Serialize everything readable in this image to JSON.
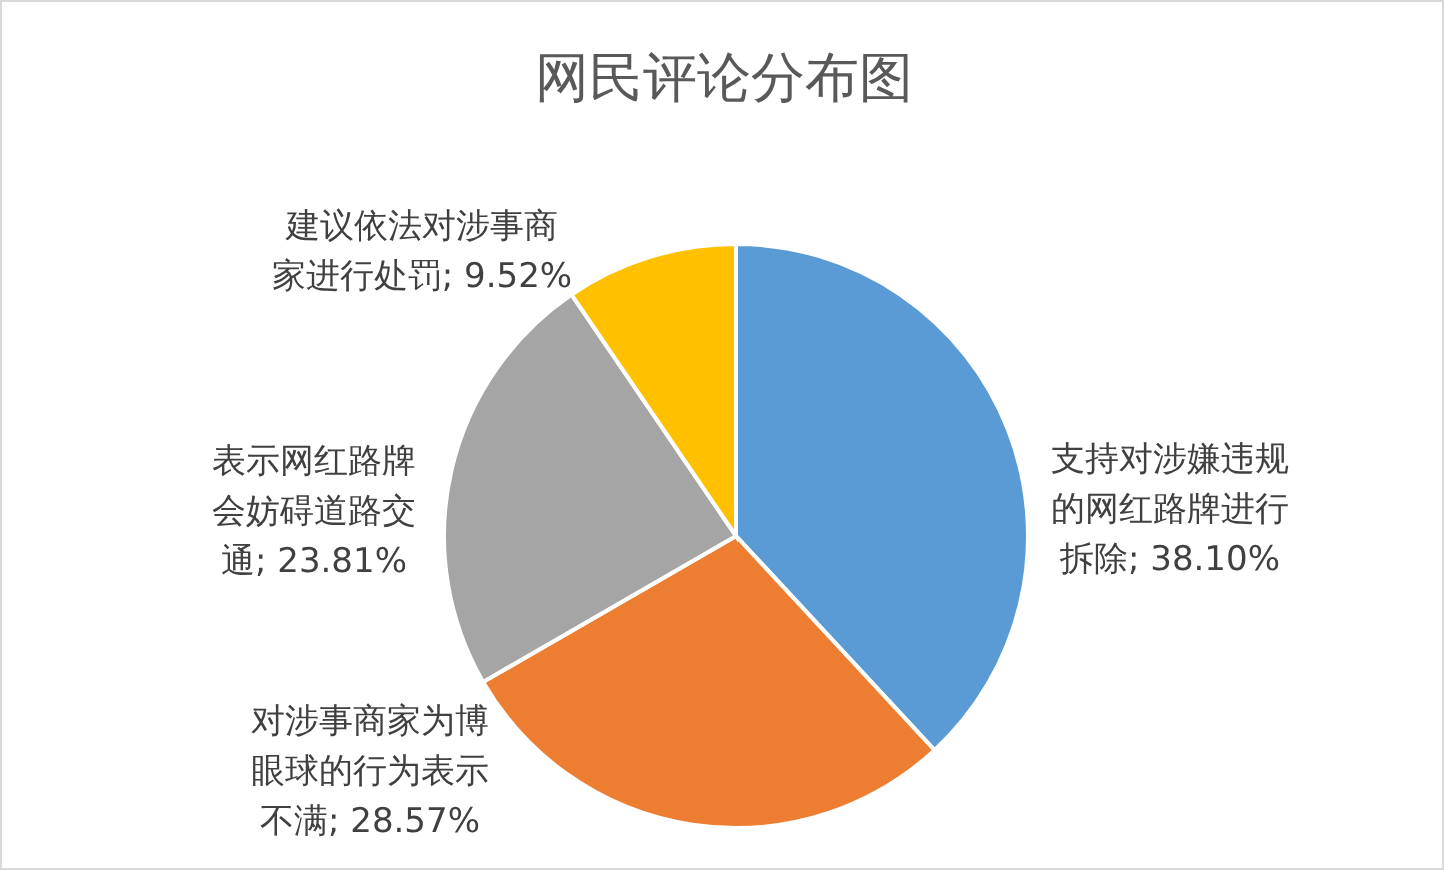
{
  "chart_data": {
    "type": "pie",
    "title": "网民评论分布图",
    "categories": [
      "支持对涉嫌违规的网红路牌进行拆除",
      "对涉事商家为博眼球的行为表示不满",
      "表示网红路牌会妨碍道路交通",
      "建议依法对涉事商家进行处罚"
    ],
    "values": [
      38.1,
      28.57,
      23.81,
      9.52
    ],
    "colors": [
      "#5b9bd5",
      "#ed7d31",
      "#a5a5a5",
      "#ffc000"
    ],
    "value_labels": [
      "38.10%",
      "28.57%",
      "23.81%",
      "9.52%"
    ]
  }
}
